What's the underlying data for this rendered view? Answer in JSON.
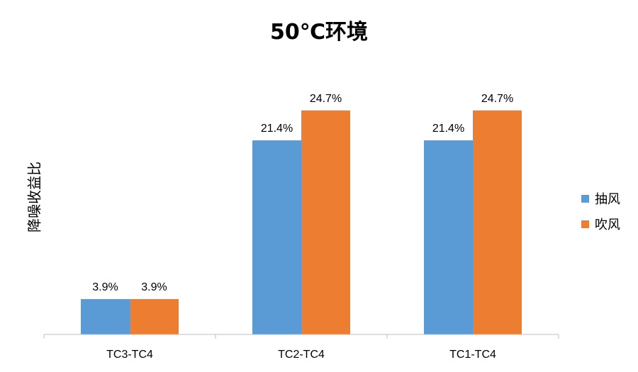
{
  "chart_data": {
    "type": "bar",
    "title": "50℃环境",
    "ylabel": "降噪收益比",
    "xlabel": "",
    "categories": [
      "TC3-TC4",
      "TC2-TC4",
      "TC1-TC4"
    ],
    "series": [
      {
        "name": "抽风",
        "values": [
          3.9,
          21.4,
          21.4
        ],
        "labels": [
          "3.9%",
          "21.4%",
          "21.4%"
        ],
        "color": "#5B9BD5"
      },
      {
        "name": "吹风",
        "values": [
          3.9,
          24.7,
          24.7
        ],
        "labels": [
          "3.9%",
          "24.7%",
          "24.7%"
        ],
        "color": "#ED7D31"
      }
    ],
    "ylim": [
      0,
      26.4
    ],
    "grid": false,
    "legend_position": "right"
  }
}
